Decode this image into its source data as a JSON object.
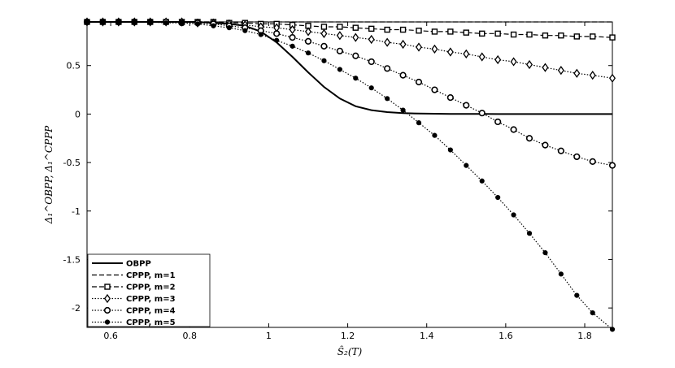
{
  "chart_data": {
    "type": "line",
    "title": "",
    "xlabel": "Ŝ₂(T)",
    "ylabel": "Δ₁^OBPP, Δ₁^CPPP",
    "xlim": [
      0.54,
      1.87
    ],
    "ylim": [
      -2.2,
      0.95
    ],
    "xticks": [
      "0.6",
      "0.8",
      "1",
      "1.2",
      "1.4",
      "1.6",
      "1.8"
    ],
    "yticks": [
      "0.5",
      "0",
      "-0.5",
      "-1",
      "-1.5",
      "-2"
    ],
    "grid": false,
    "legend_position": "bottom-left",
    "x": [
      0.54,
      0.58,
      0.62,
      0.66,
      0.7,
      0.74,
      0.78,
      0.82,
      0.86,
      0.9,
      0.94,
      0.98,
      1.02,
      1.06,
      1.1,
      1.14,
      1.18,
      1.22,
      1.26,
      1.3,
      1.34,
      1.38,
      1.42,
      1.46,
      1.5,
      1.54,
      1.58,
      1.62,
      1.66,
      1.7,
      1.74,
      1.78,
      1.82,
      1.87
    ],
    "series": [
      {
        "name": "OBPP",
        "style": "solid",
        "marker": "none",
        "values": [
          0.95,
          0.95,
          0.95,
          0.95,
          0.95,
          0.95,
          0.95,
          0.95,
          0.94,
          0.93,
          0.91,
          0.85,
          0.74,
          0.59,
          0.43,
          0.28,
          0.16,
          0.08,
          0.04,
          0.02,
          0.01,
          0.005,
          0.003,
          0.002,
          0.001,
          0.001,
          0.0,
          0.0,
          0.0,
          0.0,
          0.0,
          0.0,
          0.0,
          0.0
        ]
      },
      {
        "name": "CPPP, m=1",
        "style": "dashed",
        "marker": "none",
        "values": [
          0.95,
          0.95,
          0.95,
          0.95,
          0.95,
          0.95,
          0.95,
          0.95,
          0.95,
          0.95,
          0.95,
          0.95,
          0.95,
          0.95,
          0.95,
          0.95,
          0.95,
          0.95,
          0.95,
          0.95,
          0.95,
          0.95,
          0.95,
          0.95,
          0.95,
          0.95,
          0.95,
          0.95,
          0.95,
          0.95,
          0.95,
          0.95,
          0.95,
          0.95
        ]
      },
      {
        "name": "CPPP, m=2",
        "style": "dashed",
        "marker": "square",
        "values": [
          0.95,
          0.95,
          0.95,
          0.95,
          0.95,
          0.95,
          0.95,
          0.95,
          0.95,
          0.94,
          0.94,
          0.93,
          0.93,
          0.92,
          0.91,
          0.9,
          0.9,
          0.89,
          0.88,
          0.87,
          0.87,
          0.86,
          0.85,
          0.85,
          0.84,
          0.83,
          0.83,
          0.82,
          0.82,
          0.81,
          0.81,
          0.8,
          0.8,
          0.79
        ]
      },
      {
        "name": "CPPP, m=3",
        "style": "dotted",
        "marker": "diamond",
        "values": [
          0.95,
          0.95,
          0.95,
          0.95,
          0.95,
          0.95,
          0.95,
          0.94,
          0.94,
          0.93,
          0.92,
          0.9,
          0.89,
          0.87,
          0.85,
          0.83,
          0.81,
          0.79,
          0.77,
          0.74,
          0.72,
          0.69,
          0.67,
          0.64,
          0.62,
          0.59,
          0.56,
          0.54,
          0.51,
          0.48,
          0.45,
          0.42,
          0.4,
          0.37
        ]
      },
      {
        "name": "CPPP, m=4",
        "style": "dotted",
        "marker": "circle",
        "values": [
          0.95,
          0.95,
          0.95,
          0.95,
          0.95,
          0.95,
          0.94,
          0.94,
          0.93,
          0.91,
          0.89,
          0.86,
          0.83,
          0.79,
          0.75,
          0.7,
          0.65,
          0.6,
          0.54,
          0.47,
          0.4,
          0.33,
          0.25,
          0.17,
          0.09,
          0.01,
          -0.08,
          -0.16,
          -0.25,
          -0.32,
          -0.38,
          -0.44,
          -0.49,
          -0.53
        ]
      },
      {
        "name": "CPPP, m=5",
        "style": "dotted",
        "marker": "filled-circle",
        "values": [
          0.95,
          0.95,
          0.95,
          0.95,
          0.95,
          0.94,
          0.94,
          0.93,
          0.91,
          0.89,
          0.86,
          0.82,
          0.76,
          0.7,
          0.63,
          0.55,
          0.46,
          0.37,
          0.27,
          0.16,
          0.04,
          -0.09,
          -0.22,
          -0.37,
          -0.53,
          -0.69,
          -0.86,
          -1.04,
          -1.23,
          -1.43,
          -1.65,
          -1.87,
          -2.05,
          -2.22
        ]
      }
    ]
  }
}
